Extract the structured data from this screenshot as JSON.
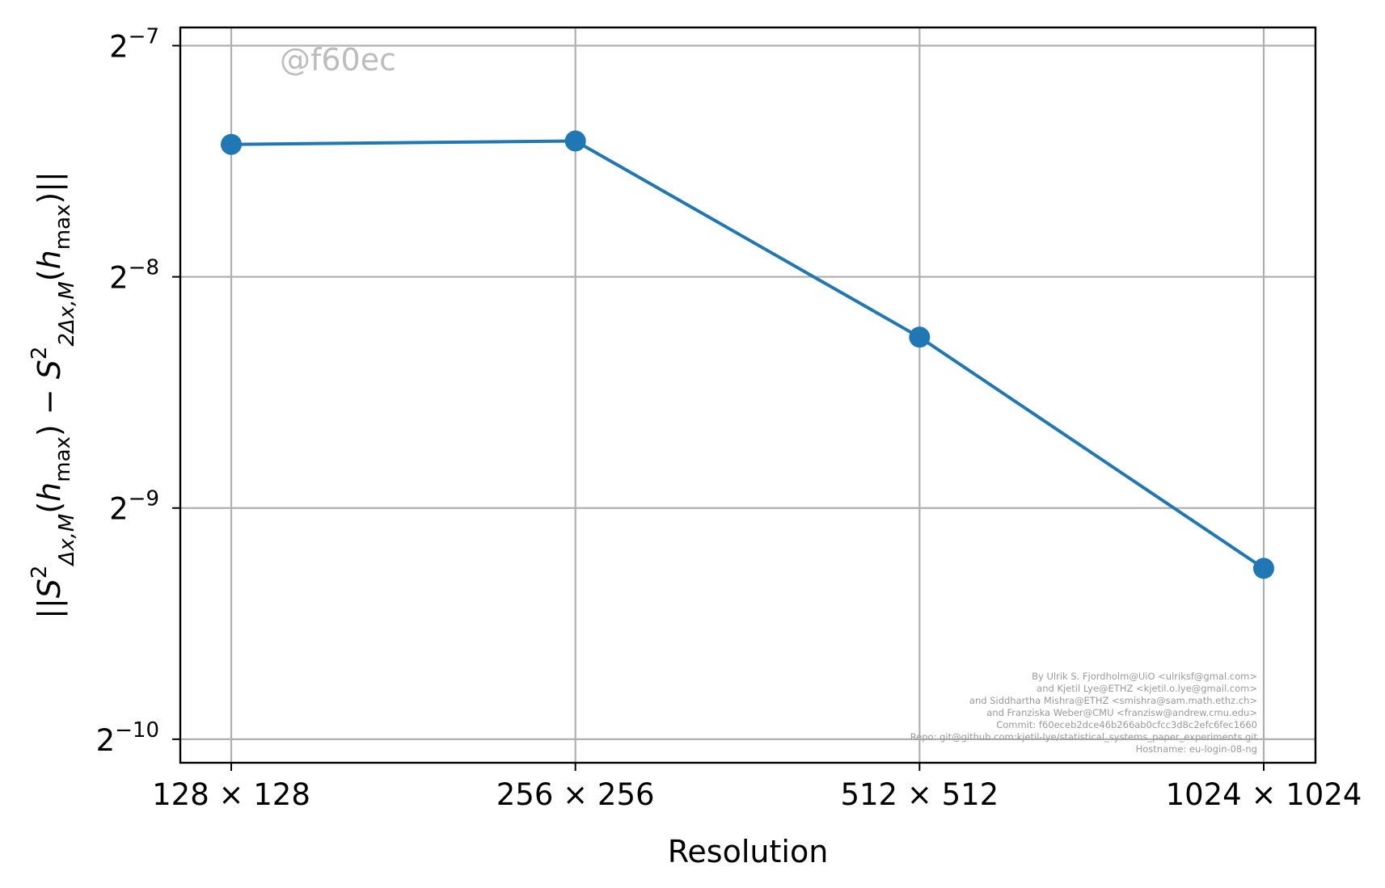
{
  "chart_data": {
    "type": "line",
    "categories": [
      "128 × 128",
      "256 × 256",
      "512 × 512",
      "1024 × 1024"
    ],
    "series": [
      {
        "values": [
          0.00581,
          0.00587,
          0.00326,
          0.00163
        ],
        "color": "#1f77b4",
        "marker": "circle"
      }
    ],
    "xlabel": "Resolution",
    "ylabel": "||S²_{Δx,M}(h_max) − S²_{2Δx,M}(h_max)||",
    "y_scale": "log2",
    "ylim": [
      0.00091,
      0.00825
    ],
    "y_ticks": [
      {
        "value": 0.0078125,
        "base": "2",
        "exp": "−7"
      },
      {
        "value": 0.00390625,
        "base": "2",
        "exp": "−8"
      },
      {
        "value": 0.001953125,
        "base": "2",
        "exp": "−9"
      },
      {
        "value": 0.0009765625,
        "base": "2",
        "exp": "−10"
      }
    ],
    "grid": true,
    "legend": "none"
  },
  "watermark": "@f60ec",
  "credits": [
    "By Ulrik S. Fjordholm@UiO <ulriksf@gmal.com>",
    "and Kjetil Lye@ETHZ <kjetil.o.lye@gmail.com>",
    "and Siddhartha Mishra@ETHZ <smishra@sam.math.ethz.ch>",
    "and Franziska Weber@CMU <franzisw@andrew.cmu.edu>",
    "Commit: f60eceb2dce46b266ab0cfcc3d8c2efc6fec1660",
    "Repo: git@github.com:kjetil-lye/statistical_systems_paper_experiments.git",
    "Hostname: eu-login-08-ng"
  ]
}
